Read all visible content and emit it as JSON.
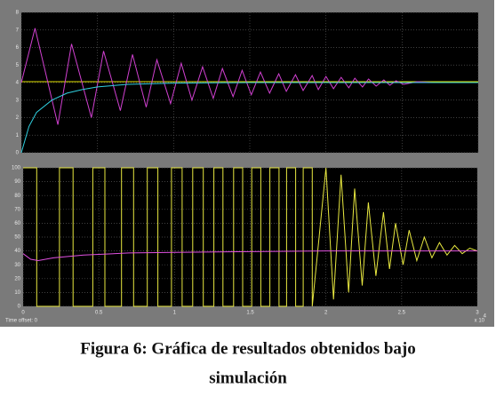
{
  "chart_data": [
    {
      "type": "line",
      "grid": true,
      "ylim": [
        0,
        8
      ],
      "yticks": [
        0,
        1,
        2,
        3,
        4,
        5,
        6,
        7,
        8
      ],
      "xlim": [
        0,
        3
      ],
      "series": [
        {
          "color": "#e0e000",
          "x": [
            0,
            3
          ],
          "values": [
            4.05,
            4.05
          ]
        },
        {
          "color": "#d040d0",
          "x": [
            0,
            0.09,
            0.24,
            0.33,
            0.46,
            0.54,
            0.65,
            0.73,
            0.82,
            0.89,
            0.98,
            1.05,
            1.12,
            1.19,
            1.26,
            1.32,
            1.39,
            1.45,
            1.51,
            1.57,
            1.63,
            1.69,
            1.74,
            1.8,
            1.85,
            1.91,
            1.95,
            2.0,
            2.05,
            2.1,
            2.15,
            2.19,
            2.24,
            2.28,
            2.33,
            2.38,
            2.42,
            2.46,
            2.51,
            2.6,
            2.7,
            3.0
          ],
          "values": [
            4,
            7.1,
            1.6,
            6.2,
            2.0,
            5.8,
            2.4,
            5.6,
            2.6,
            5.3,
            2.8,
            5.1,
            3.0,
            4.9,
            3.1,
            4.8,
            3.2,
            4.7,
            3.3,
            4.6,
            3.4,
            4.5,
            3.5,
            4.45,
            3.55,
            4.4,
            3.6,
            4.35,
            3.65,
            4.3,
            3.7,
            4.25,
            3.75,
            4.2,
            3.8,
            4.15,
            3.85,
            4.1,
            3.9,
            4.05,
            4.0,
            4.0
          ]
        },
        {
          "color": "#30d0e0",
          "x": [
            0,
            0.05,
            0.1,
            0.2,
            0.3,
            0.4,
            0.5,
            0.7,
            1.0,
            1.5,
            3.0
          ],
          "values": [
            0,
            1.5,
            2.3,
            3.0,
            3.4,
            3.6,
            3.75,
            3.9,
            3.97,
            4.0,
            4.0
          ]
        }
      ]
    },
    {
      "type": "line",
      "grid": true,
      "ylim": [
        0,
        100
      ],
      "yticks": [
        0,
        10,
        20,
        30,
        40,
        50,
        60,
        70,
        80,
        90,
        100
      ],
      "xlim": [
        0,
        3
      ],
      "xticks": [
        0,
        0.5,
        1,
        1.5,
        2,
        2.5,
        3
      ],
      "x_scale": "x 10",
      "x_scale_exponent": "4",
      "time_offset": "Time offset:  0",
      "series": [
        {
          "color": "#e8e840",
          "x": [
            0,
            0.09,
            0.09,
            0.24,
            0.24,
            0.33,
            0.33,
            0.46,
            0.46,
            0.54,
            0.54,
            0.65,
            0.65,
            0.73,
            0.73,
            0.82,
            0.82,
            0.89,
            0.89,
            0.98,
            0.98,
            1.05,
            1.05,
            1.12,
            1.12,
            1.19,
            1.19,
            1.26,
            1.26,
            1.32,
            1.32,
            1.39,
            1.39,
            1.45,
            1.45,
            1.51,
            1.51,
            1.57,
            1.57,
            1.63,
            1.63,
            1.69,
            1.69,
            1.74,
            1.74,
            1.8,
            1.8,
            1.85,
            1.85,
            1.91,
            1.91,
            2.0,
            2.05,
            2.1,
            2.15,
            2.19,
            2.24,
            2.28,
            2.33,
            2.38,
            2.42,
            2.46,
            2.51,
            2.55,
            2.6,
            2.65,
            2.7,
            2.75,
            2.8,
            2.85,
            2.9,
            2.95,
            3.0
          ],
          "values": [
            100,
            100,
            0,
            0,
            100,
            100,
            0,
            0,
            100,
            100,
            0,
            0,
            100,
            100,
            0,
            0,
            100,
            100,
            0,
            0,
            100,
            100,
            0,
            0,
            100,
            100,
            0,
            0,
            100,
            100,
            0,
            0,
            100,
            100,
            0,
            0,
            100,
            100,
            0,
            0,
            100,
            100,
            0,
            0,
            100,
            100,
            0,
            0,
            100,
            100,
            0,
            100,
            5,
            95,
            10,
            85,
            15,
            75,
            22,
            68,
            27,
            60,
            30,
            55,
            33,
            50,
            35,
            46,
            37,
            44,
            38,
            42,
            40
          ]
        },
        {
          "color": "#e050e0",
          "x": [
            0,
            0.05,
            0.1,
            0.2,
            0.4,
            0.7,
            1.0,
            1.5,
            2.0,
            3.0
          ],
          "values": [
            38,
            34,
            33,
            35,
            37,
            38.5,
            39,
            39.5,
            40,
            40
          ]
        }
      ]
    }
  ],
  "caption": [
    "Figura 6: Gráfica de resultados obtenidos bajo",
    "simulación"
  ]
}
